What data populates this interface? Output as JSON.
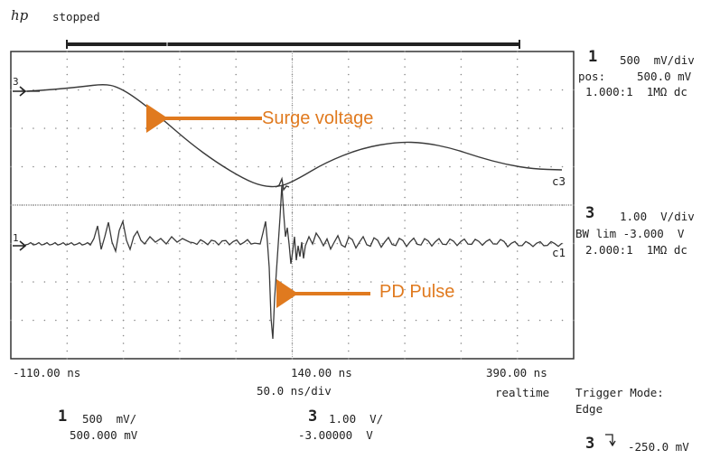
{
  "header": {
    "logo": "hp",
    "status": "stopped"
  },
  "channel1": {
    "number": "1",
    "scale": "500  mV/div",
    "pos_label": "pos:",
    "pos_value": "500.0 mV",
    "probe": "1.000:1  1MΩ dc",
    "trace_label": "c1",
    "marker": "1"
  },
  "channel3": {
    "number": "3",
    "scale": "1.00  V/div",
    "bw_line": "BW lim -3.000  V",
    "probe": "2.000:1  1MΩ dc",
    "trace_label": "c3",
    "marker": "3"
  },
  "timebase": {
    "left": "-110.00 ns",
    "center": "140.00 ns",
    "right": "390.00 ns",
    "per_div": "50.0 ns/div",
    "mode": "realtime"
  },
  "trigger": {
    "mode_label": "Trigger Mode:",
    "mode_value": "Edge",
    "channel": "3",
    "slope_icon": "falling-edge-icon",
    "level": "-250.0 mV"
  },
  "bottom_readouts": {
    "ch1_number": "1",
    "ch1_scale": "500  mV/",
    "ch1_offset": "500.000 mV",
    "ch3_number": "3",
    "ch3_scale": "1.00  V/",
    "ch3_offset": "-3.00000  V"
  },
  "annotations": {
    "surge": "Surge voltage",
    "pd": "PD Pulse",
    "color": "#E07A1F"
  },
  "colors": {
    "trace": "#3a3a3a",
    "grid": "#9a9a9a",
    "accent": "#E07A1F"
  }
}
